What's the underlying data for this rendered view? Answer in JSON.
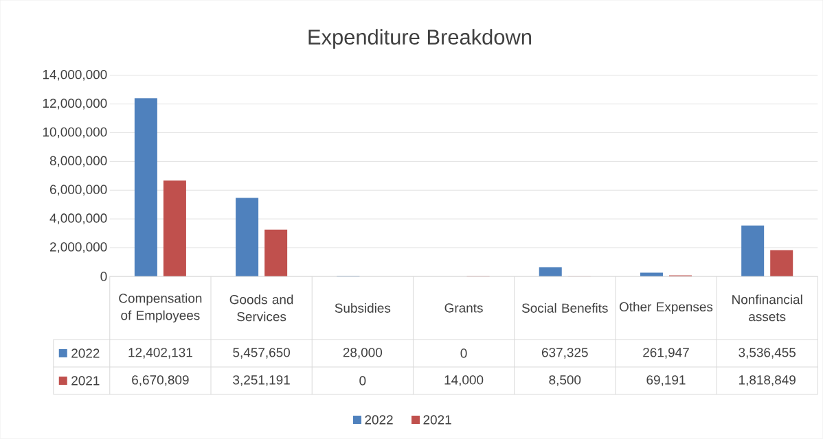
{
  "chart_data": {
    "type": "bar",
    "title": "Expenditure Breakdown",
    "categories": [
      "Compensation of Employees",
      "Goods and Services",
      "Subsidies",
      "Grants",
      "Social Benefits",
      "Other Expenses",
      "Nonfinancial assets"
    ],
    "series": [
      {
        "name": "2022",
        "color": "#4f81bd",
        "values": [
          12402131,
          5457650,
          28000,
          0,
          637325,
          261947,
          3536455
        ],
        "value_labels": [
          "12,402,131",
          "5,457,650",
          "28,000",
          "0",
          "637,325",
          "261,947",
          "3,536,455"
        ]
      },
      {
        "name": "2021",
        "color": "#c0504d",
        "values": [
          6670809,
          3251191,
          0,
          14000,
          8500,
          69191,
          1818849
        ],
        "value_labels": [
          "6,670,809",
          "3,251,191",
          "0",
          "14,000",
          "8,500",
          "69,191",
          "1,818,849"
        ]
      }
    ],
    "ylim": [
      0,
      14000000
    ],
    "yticks": [
      {
        "value": 0,
        "label": "0"
      },
      {
        "value": 2000000,
        "label": "2,000,000"
      },
      {
        "value": 4000000,
        "label": "4,000,000"
      },
      {
        "value": 6000000,
        "label": "6,000,000"
      },
      {
        "value": 8000000,
        "label": "8,000,000"
      },
      {
        "value": 10000000,
        "label": "10,000,000"
      },
      {
        "value": 12000000,
        "label": "12,000,000"
      },
      {
        "value": 14000000,
        "label": "14,000,000"
      }
    ],
    "grid": "y",
    "legend": "bottom"
  }
}
